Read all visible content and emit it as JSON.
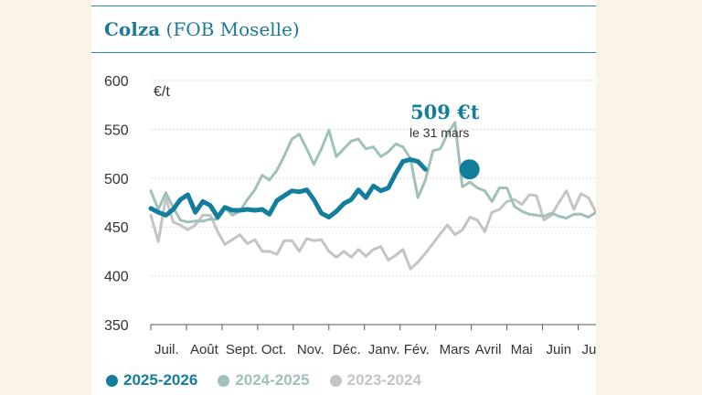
{
  "header": {
    "title": "Colza",
    "subtitle": "(FOB Moselle)"
  },
  "chart_data": {
    "type": "line",
    "unit": "€/t",
    "ylim": [
      350,
      600
    ],
    "yticks": [
      600,
      550,
      500,
      450,
      400,
      350
    ],
    "xlim": [
      0,
      12.5
    ],
    "months": [
      "Juil.",
      "Août",
      "Sept.",
      "Oct.",
      "Nov.",
      "Déc.",
      "Janv.",
      "Fév.",
      "Mars",
      "Avril",
      "Mai",
      "Juin",
      "Juil."
    ],
    "grid": true,
    "legend_position": "bottom",
    "series": [
      {
        "name": "2023-2024",
        "color": "#c4c4c4",
        "x": [
          0,
          0.21,
          0.42,
          0.63,
          0.83,
          1.04,
          1.25,
          1.46,
          1.67,
          1.88,
          2.08,
          2.29,
          2.5,
          2.71,
          2.92,
          3.13,
          3.33,
          3.54,
          3.75,
          3.96,
          4.17,
          4.38,
          4.58,
          4.79,
          5,
          5.21,
          5.42,
          5.63,
          5.83,
          6.04,
          6.25,
          6.46,
          6.67,
          6.88,
          7.08,
          7.29,
          7.5,
          7.71,
          7.92,
          8.13,
          8.33,
          8.54,
          8.75,
          8.96,
          9.17,
          9.38,
          9.58,
          9.79,
          10,
          10.21,
          10.42,
          10.63,
          10.83,
          11.04,
          11.25,
          11.46,
          11.67,
          11.88,
          12.08,
          12.29,
          12.5
        ],
        "values": [
          462,
          435,
          480,
          455,
          452,
          447,
          452,
          462,
          462,
          445,
          432,
          437,
          442,
          433,
          437,
          425,
          425,
          422,
          436,
          436,
          425,
          438,
          436,
          437,
          425,
          419,
          425,
          419,
          427,
          420,
          427,
          430,
          416,
          421,
          427,
          407,
          414,
          423,
          433,
          443,
          452,
          442,
          447,
          460,
          457,
          445,
          465,
          468,
          476,
          478,
          473,
          483,
          482,
          457,
          462,
          475,
          487,
          468,
          484,
          480,
          465
        ]
      },
      {
        "name": "2024-2025",
        "color": "#9ec2bb",
        "x": [
          0,
          0.21,
          0.42,
          0.63,
          0.83,
          1.04,
          1.25,
          1.46,
          1.67,
          1.88,
          2.08,
          2.29,
          2.5,
          2.71,
          2.92,
          3.13,
          3.33,
          3.54,
          3.75,
          3.96,
          4.17,
          4.38,
          4.58,
          4.79,
          5,
          5.21,
          5.42,
          5.63,
          5.83,
          6.04,
          6.25,
          6.46,
          6.67,
          6.88,
          7.08,
          7.29,
          7.5,
          7.71,
          7.92,
          8.13,
          8.33,
          8.54,
          8.75,
          8.96,
          9.17,
          9.38,
          9.58,
          9.79,
          10,
          10.21,
          10.42,
          10.63,
          10.83,
          11.04,
          11.25,
          11.46,
          11.67,
          11.88,
          12.08,
          12.29,
          12.5
        ],
        "values": [
          487,
          468,
          485,
          470,
          457,
          455,
          456,
          456,
          458,
          458,
          470,
          462,
          466,
          478,
          488,
          503,
          498,
          508,
          523,
          540,
          545,
          530,
          514,
          530,
          549,
          522,
          530,
          538,
          540,
          530,
          532,
          522,
          527,
          535,
          532,
          520,
          480,
          498,
          528,
          530,
          545,
          557,
          491,
          496,
          490,
          487,
          476,
          490,
          490,
          471,
          466,
          463,
          462,
          461,
          464,
          461,
          459,
          463,
          463,
          460,
          465
        ]
      },
      {
        "name": "2025-2026",
        "color": "#137e9b",
        "x": [
          0,
          0.21,
          0.42,
          0.63,
          0.83,
          1.04,
          1.25,
          1.46,
          1.67,
          1.88,
          2.08,
          2.29,
          2.5,
          2.71,
          2.92,
          3.13,
          3.33,
          3.54,
          3.75,
          3.96,
          4.17,
          4.38,
          4.58,
          4.79,
          5,
          5.21,
          5.42,
          5.63,
          5.83,
          6.04,
          6.25,
          6.46,
          6.67,
          6.88,
          7.08,
          7.29,
          7.5,
          7.71,
          7.92,
          8.13,
          8.33,
          8.54,
          8.75,
          8.96
        ],
        "values": [
          469,
          465,
          462,
          468,
          478,
          483,
          465,
          476,
          472,
          460,
          470,
          467,
          467,
          468,
          467,
          468,
          463,
          477,
          482,
          487,
          486,
          488,
          478,
          464,
          460,
          466,
          474,
          478,
          488,
          480,
          492,
          487,
          490,
          505,
          517,
          519,
          517,
          509,
          null,
          null,
          null,
          null,
          null,
          null
        ]
      }
    ],
    "annotation": {
      "value_label": "509 €t",
      "date_label": "le 31 mars",
      "x": 8.95,
      "y": 509
    }
  }
}
